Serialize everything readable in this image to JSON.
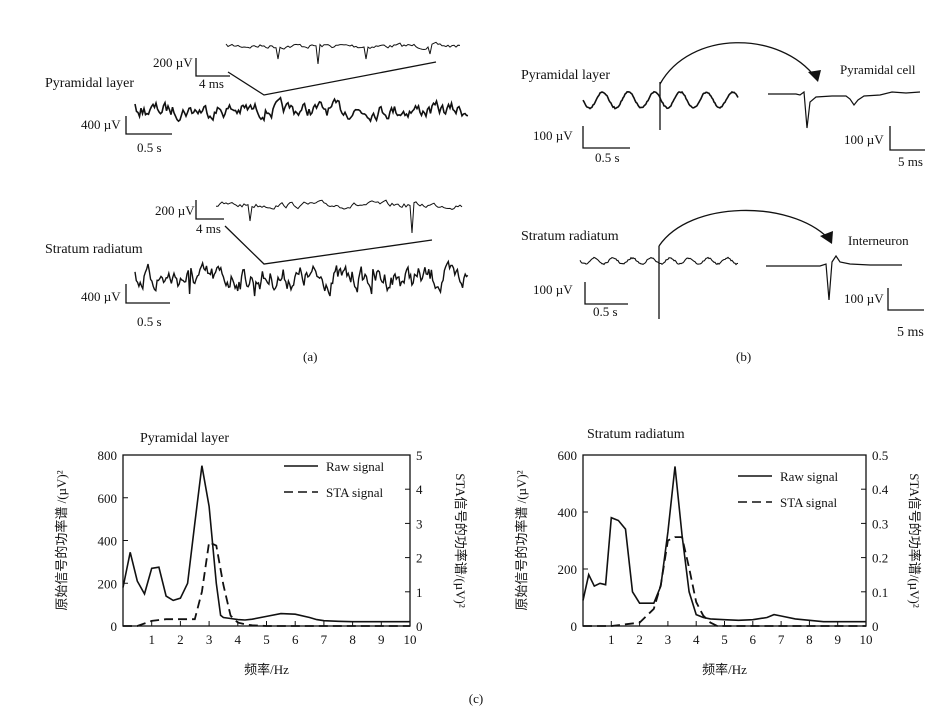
{
  "panel_a": {
    "label": "(a)",
    "pyramidal": {
      "title": "Pyramidal layer",
      "zoom_v": "200 µV",
      "zoom_t": "4 ms",
      "raw_v": "400 µV",
      "raw_t": "0.5 s"
    },
    "radiatum": {
      "title": "Stratum radiatum",
      "zoom_v": "200 µV",
      "zoom_t": "4 ms",
      "raw_v": "400 µV",
      "raw_t": "0.5 s"
    }
  },
  "panel_b": {
    "label": "(b)",
    "pyramidal": {
      "title": "Pyramidal layer",
      "cell": "Pyramidal cell",
      "lfp_v": "100 µV",
      "lfp_t": "0.5 s",
      "spk_v": "100 µV",
      "spk_t": "5 ms"
    },
    "radiatum": {
      "title": "Stratum radiatum",
      "cell": "Interneuron",
      "lfp_v": "100 µV",
      "lfp_t": "0.5 s",
      "spk_v": "100 µV",
      "spk_t": "5 ms"
    }
  },
  "panel_c": {
    "label": "(c)"
  },
  "chart_data": [
    {
      "type": "line",
      "title": "Pyramidal layer",
      "xlabel": "频率/Hz",
      "ylabel_left": "原始信号的功率谱 /(µV)²",
      "ylabel_right": "STA信号的功率谱/(µV)²",
      "xlim": [
        0,
        10
      ],
      "ylim_left": [
        0,
        800
      ],
      "ylim_right": [
        0,
        5
      ],
      "xticks": [
        "1",
        "2",
        "3",
        "4",
        "5",
        "6",
        "7",
        "8",
        "9",
        "10"
      ],
      "yticks_left": [
        "0",
        "200",
        "400",
        "600",
        "800"
      ],
      "yticks_right": [
        "0",
        "1",
        "2",
        "3",
        "4",
        "5"
      ],
      "legend": "top-right",
      "series": [
        {
          "name": "Raw signal",
          "axis": "left",
          "style": "solid",
          "x": [
            0.0,
            0.25,
            0.5,
            0.75,
            1.0,
            1.25,
            1.5,
            1.75,
            2.0,
            2.25,
            2.5,
            2.75,
            3.0,
            3.25,
            3.4,
            3.5,
            3.75,
            4.0,
            4.25,
            4.5,
            5.0,
            5.5,
            6.0,
            6.5,
            6.75,
            7.0,
            7.5,
            8.0,
            8.5,
            9.0,
            9.5,
            10.0
          ],
          "y": [
            180,
            345,
            210,
            150,
            270,
            275,
            140,
            120,
            130,
            200,
            480,
            750,
            560,
            200,
            50,
            40,
            35,
            30,
            28,
            32,
            45,
            58,
            55,
            40,
            30,
            25,
            22,
            20,
            20,
            20,
            20,
            20
          ]
        },
        {
          "name": "STA signal",
          "axis": "right",
          "style": "dashed",
          "x": [
            0.0,
            0.5,
            1.0,
            1.5,
            2.0,
            2.5,
            2.75,
            3.0,
            3.25,
            3.5,
            3.75,
            4.0,
            4.25,
            4.5,
            5.0,
            6.0,
            7.0,
            8.0,
            9.0,
            10.0
          ],
          "y": [
            0.0,
            0.0,
            0.15,
            0.2,
            0.2,
            0.2,
            1.0,
            2.45,
            2.35,
            1.2,
            0.3,
            0.1,
            0.05,
            0.02,
            0.0,
            0.0,
            0.0,
            0.0,
            0.0,
            0.0
          ]
        }
      ]
    },
    {
      "type": "line",
      "title": "Stratum radiatum",
      "xlabel": "频率/Hz",
      "ylabel_left": "原始信号的功率谱 /(µV)²",
      "ylabel_right": "STA信号的功率谱/(µV)²",
      "xlim": [
        0,
        10
      ],
      "ylim_left": [
        0,
        600
      ],
      "ylim_right": [
        0,
        0.5
      ],
      "xticks": [
        "1",
        "2",
        "3",
        "4",
        "5",
        "6",
        "7",
        "8",
        "9",
        "10"
      ],
      "yticks_left": [
        "0",
        "200",
        "400",
        "600"
      ],
      "yticks_right": [
        "0",
        "0.1",
        "0.2",
        "0.3",
        "0.4",
        "0.5"
      ],
      "legend": "top-right",
      "series": [
        {
          "name": "Raw signal",
          "axis": "left",
          "style": "solid",
          "x": [
            0.0,
            0.2,
            0.4,
            0.6,
            0.8,
            1.0,
            1.25,
            1.5,
            1.75,
            2.0,
            2.25,
            2.5,
            2.75,
            3.0,
            3.25,
            3.5,
            3.75,
            4.0,
            4.25,
            4.5,
            5.0,
            5.5,
            6.0,
            6.5,
            6.75,
            7.0,
            7.5,
            8.0,
            8.5,
            9.0,
            9.5,
            10.0
          ],
          "y": [
            90,
            180,
            140,
            150,
            145,
            380,
            370,
            340,
            120,
            80,
            80,
            80,
            140,
            330,
            560,
            320,
            120,
            40,
            30,
            25,
            22,
            20,
            22,
            30,
            40,
            35,
            25,
            20,
            15,
            15,
            15,
            15
          ]
        },
        {
          "name": "STA signal",
          "axis": "right",
          "style": "dashed",
          "x": [
            0.0,
            0.5,
            1.0,
            1.5,
            2.0,
            2.5,
            2.75,
            3.0,
            3.25,
            3.5,
            3.75,
            4.0,
            4.25,
            4.5,
            4.75,
            5.0,
            6.0,
            7.0,
            8.0,
            9.0,
            10.0
          ],
          "y": [
            0.0,
            0.0,
            0.0,
            0.005,
            0.01,
            0.05,
            0.12,
            0.25,
            0.26,
            0.26,
            0.17,
            0.07,
            0.03,
            0.01,
            0.0,
            0.0,
            0.0,
            0.0,
            0.0,
            0.0,
            0.0
          ]
        }
      ]
    }
  ]
}
